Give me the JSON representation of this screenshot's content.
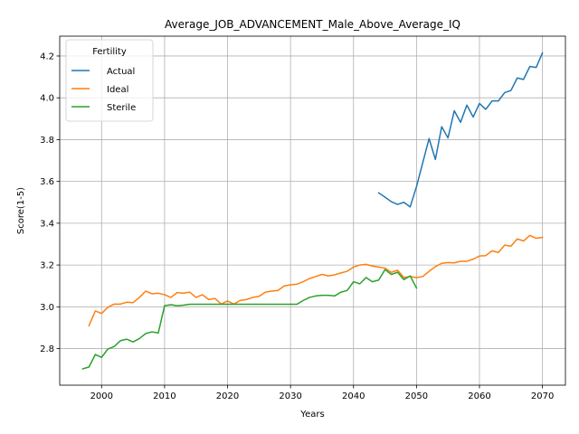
{
  "chart_data": {
    "type": "line",
    "title": "Average_JOB_ADVANCEMENT_Male_Above_Average_IQ",
    "xlabel": "Years",
    "ylabel": "Score(1-5)",
    "xlim": [
      1993.35,
      2073.65
    ],
    "ylim": [
      2.625,
      4.295
    ],
    "xticks": [
      2000,
      2010,
      2020,
      2030,
      2040,
      2050,
      2060,
      2070
    ],
    "yticks": [
      2.8,
      3.0,
      3.2,
      3.4,
      3.6,
      3.8,
      4.0,
      4.2
    ],
    "xtick_labels": [
      "2000",
      "2010",
      "2020",
      "2030",
      "2040",
      "2050",
      "2060",
      "2070"
    ],
    "ytick_labels": [
      "2.8",
      "3.0",
      "3.2",
      "3.4",
      "3.6",
      "3.8",
      "4.0",
      "4.2"
    ],
    "grid": true,
    "legend": {
      "title": "Fertility",
      "position": "top-left"
    },
    "series": [
      {
        "name": "Actual",
        "color": "#1f77b4",
        "x": [
          2044,
          2045,
          2046,
          2047,
          2048,
          2049,
          2050,
          2051,
          2052,
          2053,
          2054,
          2055,
          2056,
          2057,
          2058,
          2059,
          2060,
          2061,
          2062,
          2063,
          2064,
          2065,
          2066,
          2067,
          2068,
          2069,
          2070
        ],
        "values": [
          3.545,
          3.525,
          3.503,
          3.49,
          3.5,
          3.478,
          3.575,
          3.69,
          3.805,
          3.705,
          3.862,
          3.808,
          3.938,
          3.883,
          3.965,
          3.908,
          3.973,
          3.945,
          3.985,
          3.985,
          4.025,
          4.035,
          4.095,
          4.088,
          4.15,
          4.145,
          4.215
        ]
      },
      {
        "name": "Ideal",
        "color": "#ff7f0e",
        "x": [
          1998,
          1999,
          2000,
          2001,
          2002,
          2003,
          2004,
          2005,
          2006,
          2007,
          2008,
          2009,
          2010,
          2011,
          2012,
          2013,
          2014,
          2015,
          2016,
          2017,
          2018,
          2019,
          2020,
          2021,
          2022,
          2023,
          2024,
          2025,
          2026,
          2027,
          2028,
          2029,
          2030,
          2031,
          2032,
          2033,
          2034,
          2035,
          2036,
          2037,
          2038,
          2039,
          2040,
          2041,
          2042,
          2043,
          2044,
          2045,
          2046,
          2047,
          2048,
          2049,
          2050,
          2051,
          2052,
          2053,
          2054,
          2055,
          2056,
          2057,
          2058,
          2059,
          2060,
          2061,
          2062,
          2063,
          2064,
          2065,
          2066,
          2067,
          2068,
          2069,
          2070
        ],
        "values": [
          2.91,
          2.98,
          2.968,
          2.998,
          3.013,
          3.013,
          3.022,
          3.02,
          3.045,
          3.075,
          3.062,
          3.065,
          3.058,
          3.045,
          3.068,
          3.065,
          3.07,
          3.045,
          3.058,
          3.035,
          3.04,
          3.013,
          3.028,
          3.013,
          3.03,
          3.035,
          3.045,
          3.05,
          3.07,
          3.075,
          3.078,
          3.1,
          3.105,
          3.108,
          3.12,
          3.135,
          3.145,
          3.155,
          3.148,
          3.153,
          3.162,
          3.17,
          3.19,
          3.2,
          3.203,
          3.195,
          3.19,
          3.185,
          3.165,
          3.175,
          3.14,
          3.145,
          3.14,
          3.145,
          3.17,
          3.192,
          3.208,
          3.212,
          3.21,
          3.218,
          3.218,
          3.228,
          3.243,
          3.245,
          3.268,
          3.26,
          3.295,
          3.29,
          3.325,
          3.315,
          3.342,
          3.328,
          3.332
        ]
      },
      {
        "name": "Sterile",
        "color": "#2ca02c",
        "x": [
          1997,
          1998,
          1999,
          2000,
          2001,
          2002,
          2003,
          2004,
          2005,
          2006,
          2007,
          2008,
          2009,
          2010,
          2011,
          2012,
          2013,
          2014,
          2015,
          2016,
          2017,
          2018,
          2019,
          2020,
          2021,
          2022,
          2023,
          2024,
          2025,
          2026,
          2027,
          2028,
          2029,
          2030,
          2031,
          2032,
          2033,
          2034,
          2035,
          2036,
          2037,
          2038,
          2039,
          2040,
          2041,
          2042,
          2043,
          2044,
          2045,
          2046,
          2047,
          2048,
          2049,
          2050
        ],
        "values": [
          2.703,
          2.712,
          2.772,
          2.758,
          2.798,
          2.81,
          2.838,
          2.845,
          2.832,
          2.848,
          2.872,
          2.88,
          2.875,
          3.005,
          3.01,
          3.005,
          3.008,
          3.012,
          3.012,
          3.012,
          3.012,
          3.012,
          3.012,
          3.012,
          3.012,
          3.012,
          3.012,
          3.012,
          3.012,
          3.012,
          3.012,
          3.012,
          3.012,
          3.012,
          3.012,
          3.03,
          3.045,
          3.052,
          3.055,
          3.055,
          3.052,
          3.07,
          3.078,
          3.12,
          3.11,
          3.14,
          3.12,
          3.128,
          3.178,
          3.155,
          3.165,
          3.13,
          3.148,
          3.09
        ]
      }
    ]
  }
}
